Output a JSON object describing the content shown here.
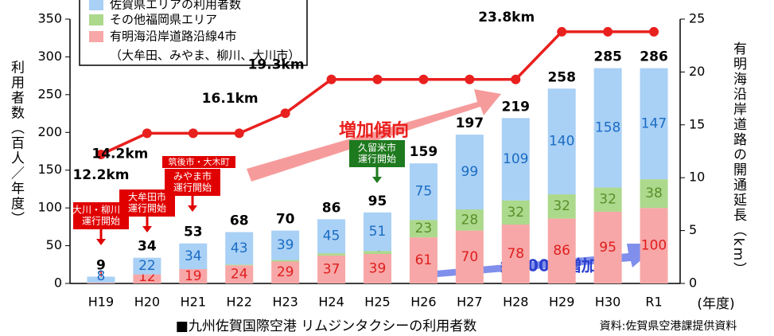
{
  "chart_data": {
    "type": "bar",
    "stacked": true,
    "categories": [
      "H19",
      "H20",
      "H21",
      "H22",
      "H23",
      "H24",
      "H25",
      "H26",
      "H27",
      "H28",
      "H29",
      "H30",
      "R1"
    ],
    "series": [
      {
        "name": "佐賀県エリアの利用者数",
        "color": "#a9d0f5",
        "label_color": "#1a6cc4",
        "values": [
          8,
          22,
          34,
          43,
          39,
          45,
          51,
          75,
          99,
          109,
          140,
          158,
          147
        ]
      },
      {
        "name": "その他福岡県エリア",
        "color": "#acd98c",
        "label_color": "#5a8f2a",
        "values": [
          null,
          null,
          0,
          1,
          2,
          3,
          4,
          23,
          28,
          32,
          32,
          32,
          38
        ]
      },
      {
        "name": "有明海沿岸道路沿線4市",
        "color": "#f7a7a7",
        "label_color": "#e01e1e",
        "values": [
          1,
          12,
          19,
          24,
          29,
          37,
          39,
          61,
          70,
          78,
          86,
          95,
          100
        ]
      }
    ],
    "legend_note": "（大牟田、みやま、柳川、大川市）",
    "totals": [
      9,
      34,
      53,
      68,
      70,
      86,
      95,
      159,
      197,
      219,
      258,
      285,
      286
    ],
    "line": {
      "axis": "y2",
      "color": "#e8201e",
      "values": [
        12.2,
        14.2,
        14.2,
        14.2,
        16.1,
        19.3,
        19.3,
        19.3,
        19.3,
        19.3,
        23.8,
        23.8,
        23.8
      ],
      "value_labels": [
        "12.2km",
        "14.2km",
        null,
        null,
        "16.1km",
        "19.3km",
        null,
        null,
        null,
        null,
        "23.8km",
        null,
        null
      ]
    },
    "ylim": [
      0,
      350
    ],
    "yticks": [
      0,
      50,
      100,
      150,
      200,
      250,
      300,
      350
    ],
    "y2lim": [
      0,
      25
    ],
    "y2ticks": [
      0,
      5,
      10,
      15,
      20,
      25
    ],
    "ylabel": "利用者数（百人／年度）",
    "y2label": "有明海沿岸道路の開通延長（km）",
    "xlabel": "(年度)",
    "caption": "■九州佐賀国際空港 リムジンタクシーの利用者数",
    "source": "資料:佐賀県空港課提供資料",
    "annotations": [
      "増加傾向",
      "約100倍増加"
    ],
    "callouts": [
      {
        "lines": [
          "大川・柳川市",
          "運行開始"
        ],
        "color": "#e00000"
      },
      {
        "lines": [
          "大牟田市",
          "運行開始"
        ],
        "color": "#e00000"
      },
      {
        "lines": [
          "筑後市・大木町",
          "みやま市",
          "運行開始"
        ],
        "color": "#e00000"
      },
      {
        "lines": [
          "久留米市",
          "運行開始"
        ],
        "color": "#1e7a1e"
      }
    ]
  }
}
